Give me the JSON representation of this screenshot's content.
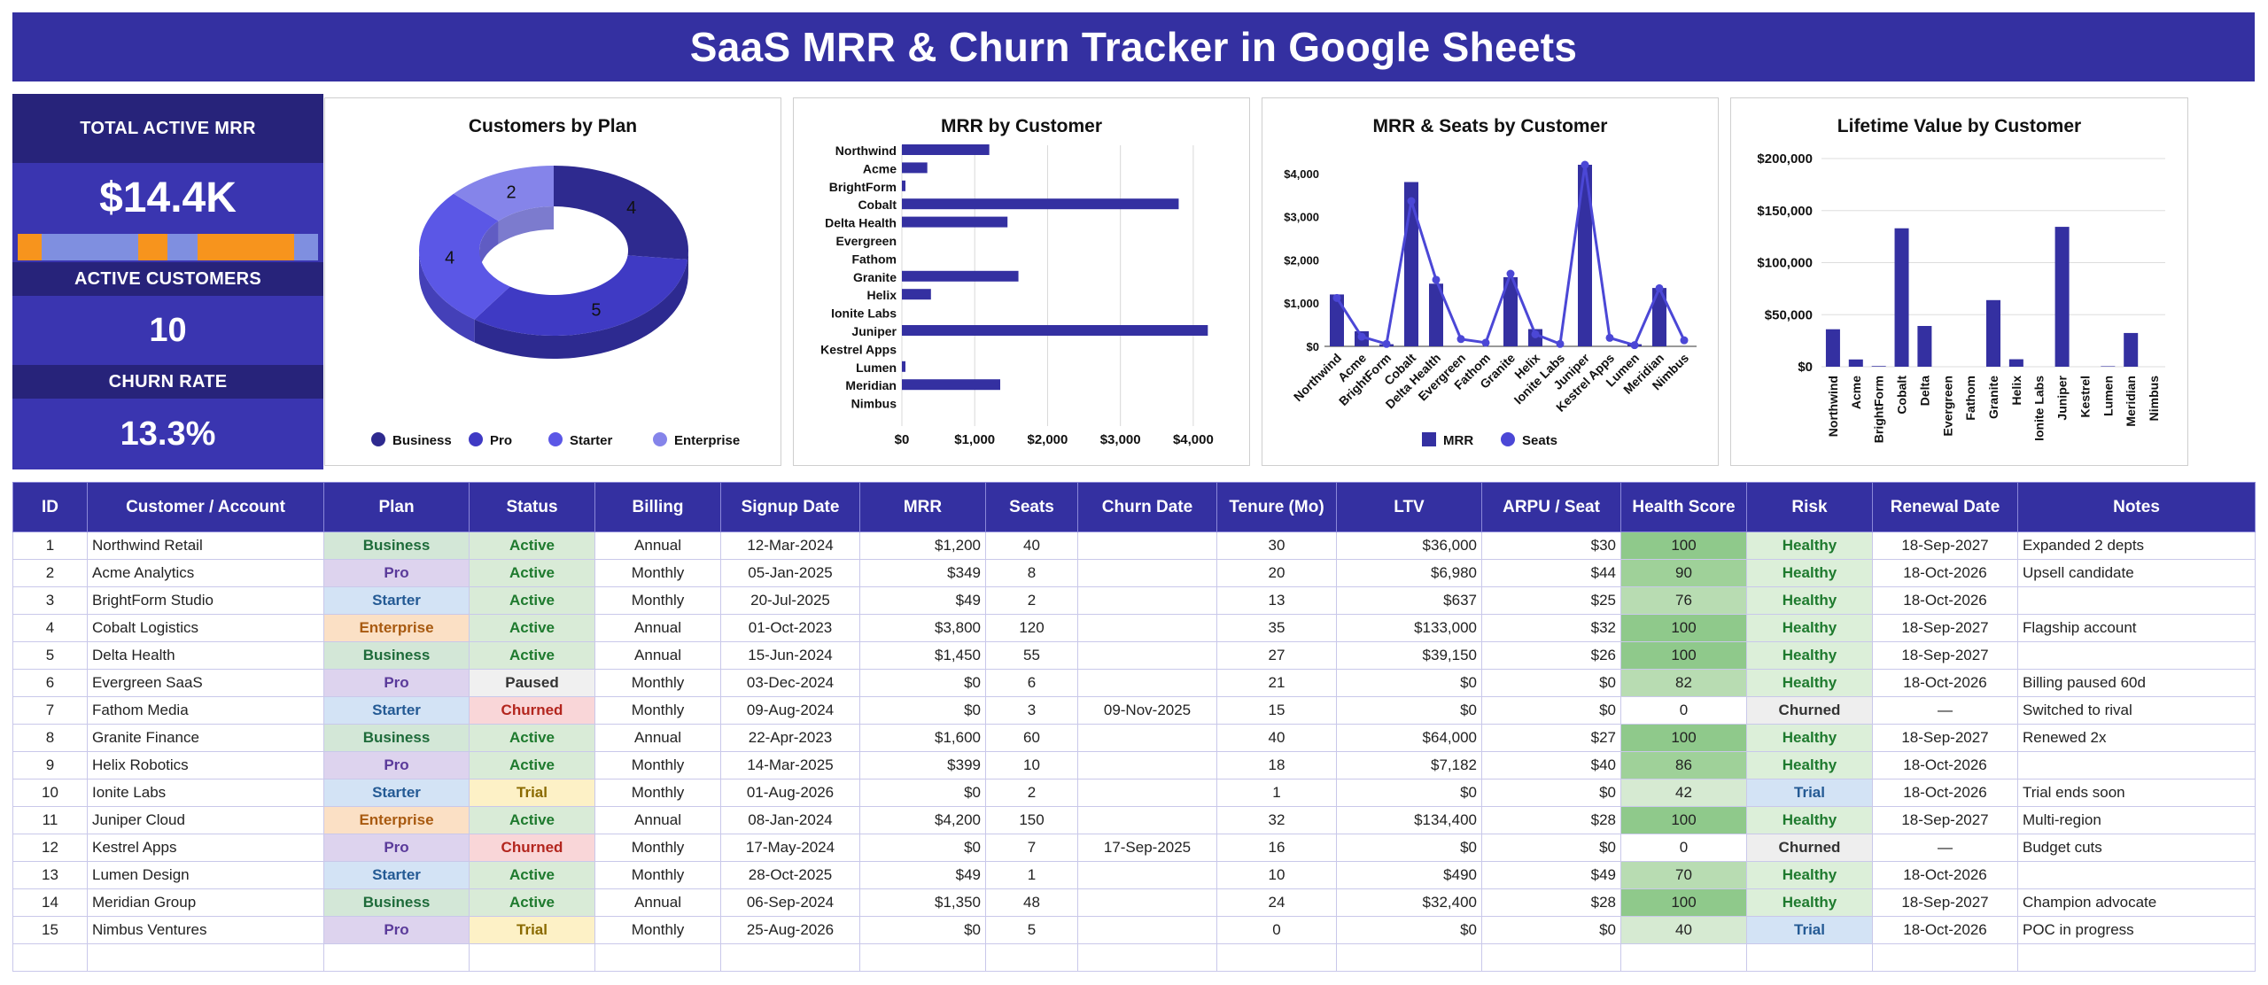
{
  "title": "SaaS MRR & Churn Tracker in Google Sheets",
  "kpi": {
    "mrr_label": "TOTAL ACTIVE MRR",
    "mrr_value": "$14.4K",
    "customers_label": "ACTIVE CUSTOMERS",
    "customers_value": "10",
    "churn_label": "CHURN RATE",
    "churn_value": "13.3%",
    "bar_segments": [
      {
        "color": "#f7941d",
        "share": 0.08
      },
      {
        "color": "#7f8fe0",
        "share": 0.32
      },
      {
        "color": "#f7941d",
        "share": 0.1
      },
      {
        "color": "#7f8fe0",
        "share": 0.1
      },
      {
        "color": "#f7941d",
        "share": 0.32
      },
      {
        "color": "#7f8fe0",
        "share": 0.08
      }
    ]
  },
  "colors": {
    "accent": "#3430a1",
    "business": "#2e2a8f",
    "pro": "#3f3ac4",
    "starter": "#5b57e6",
    "enterprise": "#8584ea",
    "bar": "#3430a1",
    "line": "#4b47d6"
  },
  "chart_data": [
    {
      "type": "pie",
      "title": "Customers by Plan",
      "categories": [
        "Business",
        "Pro",
        "Starter",
        "Enterprise"
      ],
      "values": [
        4,
        5,
        4,
        2
      ],
      "legend": "bottom"
    },
    {
      "type": "bar",
      "orientation": "horizontal",
      "title": "MRR by Customer",
      "categories": [
        "Northwind",
        "Acme",
        "BrightForm",
        "Cobalt",
        "Delta Health",
        "Evergreen",
        "Fathom",
        "Granite",
        "Helix",
        "Ionite Labs",
        "Juniper",
        "Kestrel Apps",
        "Lumen",
        "Meridian",
        "Nimbus"
      ],
      "values": [
        1200,
        349,
        49,
        3800,
        1450,
        0,
        0,
        1600,
        399,
        0,
        4200,
        0,
        49,
        1350,
        0
      ],
      "xlim": [
        0,
        4500
      ],
      "ticks": [
        "$0",
        "$1,000",
        "$2,000",
        "$3,000",
        "$4,000"
      ],
      "grid": true
    },
    {
      "type": "bar+line",
      "title": "MRR & Seats by Customer",
      "categories": [
        "Northwind",
        "Acme",
        "BrightForm",
        "Cobalt",
        "Delta Health",
        "Evergreen",
        "Fathom",
        "Granite",
        "Helix",
        "Ionite Labs",
        "Juniper",
        "Kestrel Apps",
        "Lumen",
        "Meridian",
        "Nimbus"
      ],
      "series": [
        {
          "name": "MRR",
          "type": "bar",
          "values": [
            1200,
            349,
            49,
            3800,
            1450,
            0,
            0,
            1600,
            399,
            0,
            4200,
            0,
            49,
            1350,
            0
          ]
        },
        {
          "name": "Seats",
          "type": "line",
          "values": [
            40,
            8,
            2,
            120,
            55,
            6,
            3,
            60,
            10,
            2,
            150,
            7,
            1,
            48,
            5
          ]
        }
      ],
      "ylim": [
        0,
        4200
      ],
      "yticks": [
        "$0",
        "$1,000",
        "$2,000",
        "$3,000",
        "$4,000"
      ],
      "legend": "bottom"
    },
    {
      "type": "bar",
      "title": "Lifetime Value by Customer",
      "categories": [
        "Northwind",
        "Acme",
        "BrightForm",
        "Cobalt",
        "Delta",
        "Evergreen",
        "Fathom",
        "Granite",
        "Helix",
        "Ionite Labs",
        "Juniper",
        "Kestrel",
        "Lumen",
        "Meridian",
        "Nimbus"
      ],
      "values": [
        36000,
        6980,
        637,
        133000,
        39150,
        0,
        0,
        64000,
        7182,
        0,
        134400,
        0,
        490,
        32400,
        0
      ],
      "ylim": [
        0,
        200000
      ],
      "yticks": [
        "$0",
        "$50,000",
        "$100,000",
        "$150,000",
        "$200,000"
      ],
      "grid": true
    }
  ],
  "table": {
    "headers": [
      "ID",
      "Customer / Account",
      "Plan",
      "Status",
      "Billing",
      "Signup Date",
      "MRR",
      "Seats",
      "Churn Date",
      "Tenure (Mo)",
      "LTV",
      "ARPU / Seat",
      "Health Score",
      "Risk",
      "Renewal Date",
      "Notes"
    ],
    "rows": [
      [
        "1",
        "Northwind Retail",
        "Business",
        "Active",
        "Annual",
        "12-Mar-2024",
        "$1,200",
        "40",
        "",
        "30",
        "$36,000",
        "$30",
        "100",
        "Healthy",
        "18-Sep-2027",
        "Expanded 2 depts"
      ],
      [
        "2",
        "Acme Analytics",
        "Pro",
        "Active",
        "Monthly",
        "05-Jan-2025",
        "$349",
        "8",
        "",
        "20",
        "$6,980",
        "$44",
        "90",
        "Healthy",
        "18-Oct-2026",
        "Upsell candidate"
      ],
      [
        "3",
        "BrightForm Studio",
        "Starter",
        "Active",
        "Monthly",
        "20-Jul-2025",
        "$49",
        "2",
        "",
        "13",
        "$637",
        "$25",
        "76",
        "Healthy",
        "18-Oct-2026",
        ""
      ],
      [
        "4",
        "Cobalt Logistics",
        "Enterprise",
        "Active",
        "Annual",
        "01-Oct-2023",
        "$3,800",
        "120",
        "",
        "35",
        "$133,000",
        "$32",
        "100",
        "Healthy",
        "18-Sep-2027",
        "Flagship account"
      ],
      [
        "5",
        "Delta Health",
        "Business",
        "Active",
        "Annual",
        "15-Jun-2024",
        "$1,450",
        "55",
        "",
        "27",
        "$39,150",
        "$26",
        "100",
        "Healthy",
        "18-Sep-2027",
        ""
      ],
      [
        "6",
        "Evergreen SaaS",
        "Pro",
        "Paused",
        "Monthly",
        "03-Dec-2024",
        "$0",
        "6",
        "",
        "21",
        "$0",
        "$0",
        "82",
        "Healthy",
        "18-Oct-2026",
        "Billing paused 60d"
      ],
      [
        "7",
        "Fathom Media",
        "Starter",
        "Churned",
        "Monthly",
        "09-Aug-2024",
        "$0",
        "3",
        "09-Nov-2025",
        "15",
        "$0",
        "$0",
        "0",
        "Churned",
        "—",
        "Switched to rival"
      ],
      [
        "8",
        "Granite Finance",
        "Business",
        "Active",
        "Annual",
        "22-Apr-2023",
        "$1,600",
        "60",
        "",
        "40",
        "$64,000",
        "$27",
        "100",
        "Healthy",
        "18-Sep-2027",
        "Renewed 2x"
      ],
      [
        "9",
        "Helix Robotics",
        "Pro",
        "Active",
        "Monthly",
        "14-Mar-2025",
        "$399",
        "10",
        "",
        "18",
        "$7,182",
        "$40",
        "86",
        "Healthy",
        "18-Oct-2026",
        ""
      ],
      [
        "10",
        "Ionite Labs",
        "Starter",
        "Trial",
        "Monthly",
        "01-Aug-2026",
        "$0",
        "2",
        "",
        "1",
        "$0",
        "$0",
        "42",
        "Trial",
        "18-Oct-2026",
        "Trial ends soon"
      ],
      [
        "11",
        "Juniper Cloud",
        "Enterprise",
        "Active",
        "Annual",
        "08-Jan-2024",
        "$4,200",
        "150",
        "",
        "32",
        "$134,400",
        "$28",
        "100",
        "Healthy",
        "18-Sep-2027",
        "Multi-region"
      ],
      [
        "12",
        "Kestrel Apps",
        "Pro",
        "Churned",
        "Monthly",
        "17-May-2024",
        "$0",
        "7",
        "17-Sep-2025",
        "16",
        "$0",
        "$0",
        "0",
        "Churned",
        "—",
        "Budget cuts"
      ],
      [
        "13",
        "Lumen Design",
        "Starter",
        "Active",
        "Monthly",
        "28-Oct-2025",
        "$49",
        "1",
        "",
        "10",
        "$490",
        "$49",
        "70",
        "Healthy",
        "18-Oct-2026",
        ""
      ],
      [
        "14",
        "Meridian Group",
        "Business",
        "Active",
        "Annual",
        "06-Sep-2024",
        "$1,350",
        "48",
        "",
        "24",
        "$32,400",
        "$28",
        "100",
        "Healthy",
        "18-Sep-2027",
        "Champion advocate"
      ],
      [
        "15",
        "Nimbus Ventures",
        "Pro",
        "Trial",
        "Monthly",
        "25-Aug-2026",
        "$0",
        "5",
        "",
        "0",
        "$0",
        "$0",
        "40",
        "Trial",
        "18-Oct-2026",
        "POC in progress"
      ]
    ]
  }
}
